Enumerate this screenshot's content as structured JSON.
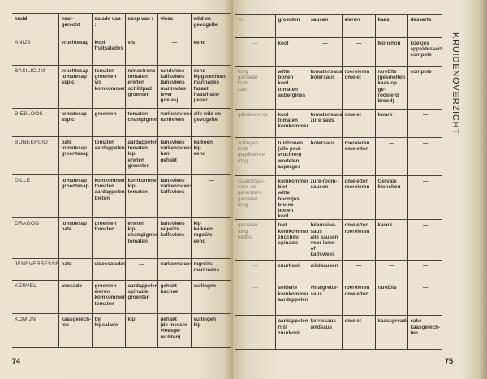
{
  "left_page": {
    "page_number": "74",
    "headers": [
      "kruid",
      "voor-\ngerecht",
      "salade van :",
      "soep van :",
      "vlees",
      "wild en\ngevogelte"
    ]
  },
  "right_page": {
    "page_number": "75",
    "section_title": "KRUIDENOVERZICHT",
    "headers": [
      "vis",
      "groenten",
      "sausen",
      "eieren",
      "kaas",
      "desserts"
    ]
  },
  "rows": [
    {
      "herb": "ANIJS",
      "left": [
        "vruchtesap",
        "kool\nfruitsalades",
        "vis",
        "—",
        "eend"
      ],
      "right": [
        "—",
        "kool",
        "—",
        "—",
        "Monchou",
        "koekjes\nappeldesserts\ncompote"
      ]
    },
    {
      "herb": "BASILICUM",
      "left": [
        "vruchtesap\ntomatesap\naspic",
        "tomaten\ngroenten\nvis\nkomkommer",
        "minestrone\ntomaten\nerwten\nschildpad\ngroenten",
        "rundvlees\nkalfsvlees\nlamsvlees\nmarinades\nlever\ngoelasj",
        "eend\nkipgerechten\nmarinades\nfazant\nhaas/haze-\n   peper"
      ],
      "right": [
        "tong\ngarnalen\nkrab\nzalm",
        "witte bonen\nkool\ntomaten\naubergines",
        "tomatensaus\nbotersaus",
        "roereieren\nomelet",
        "rarebits\n(gesmolten\n  kaas op ge-\n  roosterd\n  brood)",
        "compote"
      ]
    },
    {
      "herb": "BIESLOOK",
      "left": [
        "tomatesap\naspic",
        "groenten",
        "tomaten\nchampignons",
        "varkensvlees\nrundvlees",
        "alle wild en\n  gevogelte"
      ],
      "right": [
        "gebakken vis",
        "kool\ntomaten\nkomkommer",
        "tomatensaus\nzure saus",
        "omelet",
        "kwark",
        "—"
      ]
    },
    {
      "herb": "BONEKRUID",
      "left": [
        "paté\ntomatesap\ngroentesap",
        "tomaten\naardappelen",
        "aardappelen\ntomaten\nkip\nerwten\ngroenten",
        "lamsvlees\nvarkensvlees\nham\ngehakt",
        "kalkoen\nkip\neend"
      ],
      "right": [
        "vullingen\nkrab\ngegrilleerde\n   tong",
        "tuinbonen\n(alle peul-\n   vruchten)\nwortelen\nasperges",
        "botersaus",
        "roereieren\nomeletten",
        "—",
        "—"
      ]
    },
    {
      "herb": "DILLE",
      "left": [
        "tomatesap\ngroentesap",
        "komkommer\ntomaten\naardappelen\nbieten",
        "komkommer\nkip\ntomaten",
        "lamsvlees\nvarkensvlees\nkalfsvlees",
        "—"
      ],
      "right": [
        "Scandinavi-\nsche vis-\ngerechten\ngarnalen\ntong",
        "komkommer\nbiet\nwitte\n   boontjes\nbruine bonen\nkool",
        "zure-room-\n   sausen",
        "omeletten\nroereieren",
        "Gervais\nMonchou",
        "—"
      ]
    },
    {
      "herb": "DRAGON",
      "left": [
        "tomatesap\npaté",
        "groenten\ntomaten",
        "erwten\nkip\nchampignons\ntomaten",
        "lamsvlees\nragoûts\nkalfsvlees",
        "kip\nkalkoen\nragoûts\neend"
      ],
      "right": [
        "garnalen\ntong\nheilbot",
        "biet\nkomkommer\nzucchini\nspinazie",
        "béarnaise-\n   saus\nalle sausen\n   voor lams-\n   of kalfsvlees",
        "omeletten\nroereieren",
        "kwark",
        "—"
      ]
    },
    {
      "herb": "JENEVERBESSEN",
      "left": [
        "paté",
        "vleessalades",
        "—",
        "varkensvlees",
        "ragoûts\nmarinades"
      ],
      "right": [
        "—",
        "zuurkool",
        "wildsausen",
        "—",
        "—",
        "—"
      ]
    },
    {
      "herb": "KERVEL",
      "left": [
        "avocado",
        "groenten\neieren\nkomkommer\ntomaten",
        "aardappelen\nspinazie\ngroenten",
        "gehakt\nhachee",
        "vullingen"
      ],
      "right": [
        "—",
        "selderie\nkomkommer\naardappelen",
        "vinaigrette-\n   saus",
        "roereieren\nomeletten",
        "rarebits",
        "—"
      ]
    },
    {
      "herb": "KOMIJN",
      "left": [
        "kaasgerech-\n   ten",
        "bij kipsalade",
        "kip",
        "gehakt\n(de meeste\n   vleesge-\n   rechten)",
        "vullingen\nkip"
      ],
      "right": [
        "—",
        "aardappelen\nrijst\nzuurkool",
        "kerriesaus\nwildsaus",
        "omelet",
        "kaasspreads",
        "cake\nkaasgerech-\n   ten"
      ]
    }
  ]
}
